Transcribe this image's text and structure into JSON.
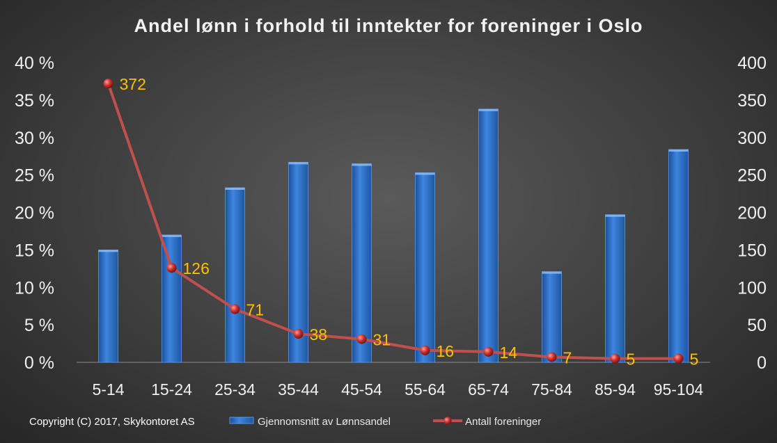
{
  "chart_data": {
    "type": "bar+line",
    "title": "Andel lønn i forhold til inntekter for foreninger i Oslo",
    "categories": [
      "5-14",
      "15-24",
      "25-34",
      "35-44",
      "45-54",
      "55-64",
      "65-74",
      "75-84",
      "85-94",
      "95-104"
    ],
    "series": [
      {
        "name": "Gjennomsnitt av Lønnsandel",
        "type": "bar",
        "axis": "left",
        "values": [
          15.0,
          17.0,
          23.3,
          26.7,
          26.5,
          25.3,
          33.8,
          12.1,
          19.7,
          28.4
        ],
        "color": "#2e6fc9"
      },
      {
        "name": "Antall foreninger",
        "type": "line",
        "axis": "right",
        "values": [
          372,
          126,
          71,
          38,
          31,
          16,
          14,
          7,
          5,
          5
        ],
        "labels": [
          "372",
          "126",
          "71",
          "38",
          "31",
          "16",
          "14",
          "7",
          "5",
          "5"
        ],
        "color": "#c0504d"
      }
    ],
    "y_left": {
      "range": [
        0,
        40
      ],
      "ticks": [
        0,
        5,
        10,
        15,
        20,
        25,
        30,
        35,
        40
      ],
      "tick_labels": [
        "0 %",
        "5 %",
        "10 %",
        "15 %",
        "20 %",
        "25 %",
        "30 %",
        "35 %",
        "40 %"
      ]
    },
    "y_right": {
      "range": [
        0,
        400
      ],
      "ticks": [
        0,
        50,
        100,
        150,
        200,
        250,
        300,
        350,
        400
      ],
      "tick_labels": [
        "0",
        "50",
        "100",
        "150",
        "200",
        "250",
        "300",
        "350",
        "400"
      ]
    },
    "label_color": "#ffc000",
    "grid": false,
    "legend_position": "bottom"
  },
  "copyright": "Copyright (C) 2017, Skykontoret AS"
}
